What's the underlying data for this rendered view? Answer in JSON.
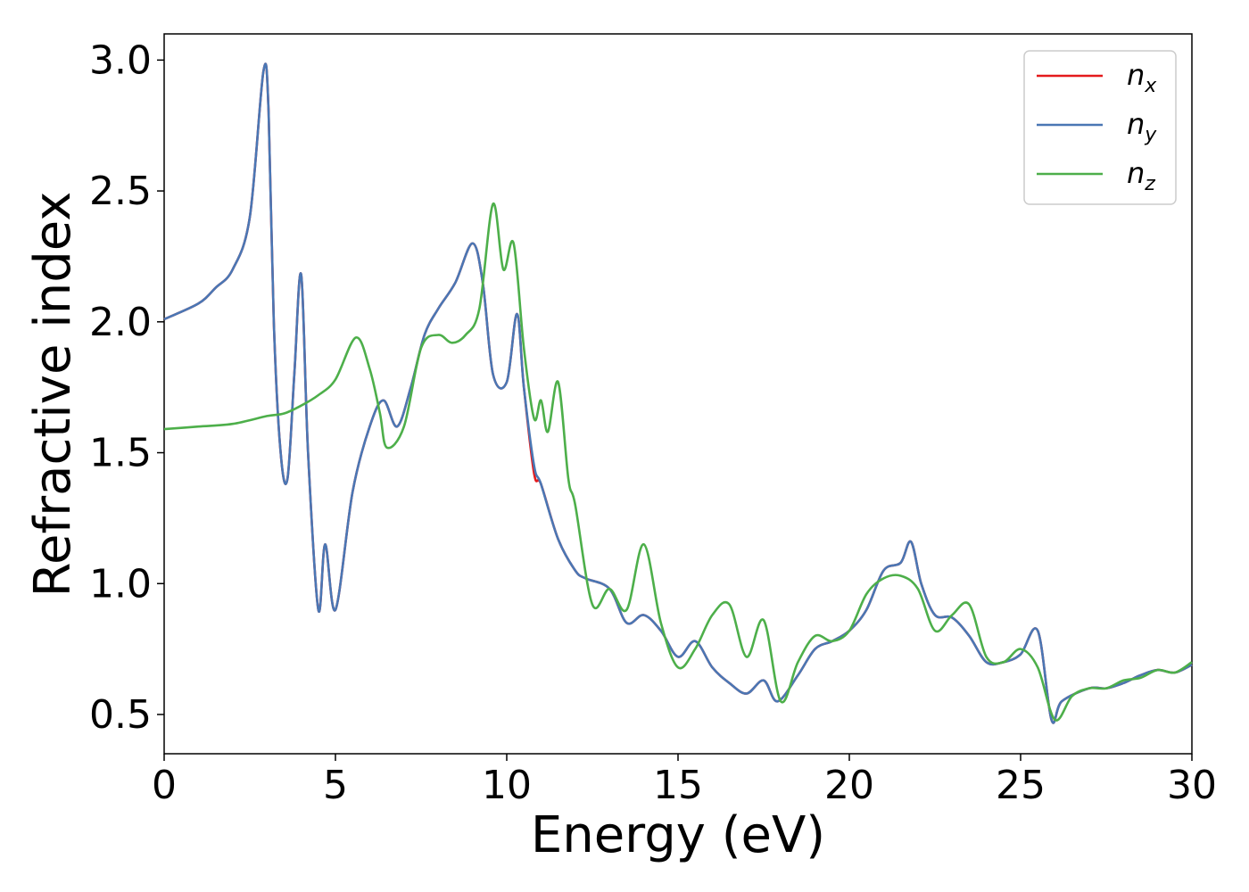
{
  "chart_data": {
    "type": "line",
    "xlabel": "Energy (eV)",
    "ylabel": "Refractive index",
    "xlim": [
      0,
      30
    ],
    "ylim": [
      0.35,
      3.1
    ],
    "xticks": [
      "0",
      "5",
      "10",
      "15",
      "20",
      "25",
      "30"
    ],
    "yticks": [
      "0.5",
      "1.0",
      "1.5",
      "2.0",
      "2.5",
      "3.0"
    ],
    "grid": false,
    "legend_position": "top-right",
    "series": [
      {
        "name": "n_x",
        "legend_base": "n",
        "legend_sub": "x",
        "color": "#e41a1c",
        "x": [
          0,
          1,
          1.5,
          2,
          2.5,
          2.9,
          3.05,
          3.2,
          3.4,
          3.6,
          3.8,
          4.0,
          4.2,
          4.5,
          4.7,
          5.0,
          5.5,
          6.0,
          6.4,
          6.8,
          7.2,
          7.6,
          8.0,
          8.5,
          9.0,
          9.3,
          9.6,
          10.0,
          10.3,
          10.5,
          10.8,
          11.0,
          11.5,
          12.0,
          12.3,
          13.0,
          13.5,
          14.0,
          14.5,
          15.0,
          15.5,
          16.0,
          16.5,
          17.0,
          17.5,
          17.9,
          18.5,
          19.0,
          19.5,
          20.0,
          20.5,
          21.0,
          21.5,
          21.8,
          22.1,
          22.5,
          23.0,
          23.5,
          24.0,
          24.5,
          25.0,
          25.5,
          25.9,
          26.2,
          27.0,
          27.5,
          28.0,
          28.5,
          29.0,
          29.5,
          30.0
        ],
        "y": [
          2.01,
          2.07,
          2.13,
          2.2,
          2.4,
          2.96,
          2.8,
          2.0,
          1.5,
          1.4,
          1.8,
          2.18,
          1.5,
          0.9,
          1.15,
          0.9,
          1.35,
          1.6,
          1.7,
          1.6,
          1.75,
          1.95,
          2.05,
          2.15,
          2.3,
          2.15,
          1.8,
          1.77,
          2.03,
          1.75,
          1.42,
          1.38,
          1.17,
          1.05,
          1.02,
          0.98,
          0.85,
          0.88,
          0.82,
          0.72,
          0.78,
          0.68,
          0.62,
          0.58,
          0.63,
          0.55,
          0.65,
          0.75,
          0.78,
          0.82,
          0.9,
          1.05,
          1.08,
          1.16,
          1.0,
          0.88,
          0.87,
          0.8,
          0.7,
          0.7,
          0.73,
          0.82,
          0.48,
          0.55,
          0.6,
          0.6,
          0.62,
          0.65,
          0.67,
          0.66,
          0.69
        ]
      },
      {
        "name": "n_y",
        "legend_base": "n",
        "legend_sub": "y",
        "color": "#4a77b4",
        "x": [
          0,
          1,
          1.5,
          2,
          2.5,
          2.9,
          3.05,
          3.2,
          3.4,
          3.6,
          3.8,
          4.0,
          4.2,
          4.5,
          4.7,
          5.0,
          5.5,
          6.0,
          6.4,
          6.8,
          7.2,
          7.6,
          8.0,
          8.5,
          9.0,
          9.3,
          9.6,
          10.0,
          10.3,
          10.5,
          10.8,
          11.0,
          11.5,
          12.0,
          12.3,
          13.0,
          13.5,
          14.0,
          14.5,
          15.0,
          15.5,
          16.0,
          16.5,
          17.0,
          17.5,
          17.9,
          18.5,
          19.0,
          19.5,
          20.0,
          20.5,
          21.0,
          21.5,
          21.8,
          22.1,
          22.5,
          23.0,
          23.5,
          24.0,
          24.5,
          25.0,
          25.5,
          25.9,
          26.2,
          27.0,
          27.5,
          28.0,
          28.5,
          29.0,
          29.5,
          30.0
        ],
        "y": [
          2.01,
          2.07,
          2.13,
          2.2,
          2.4,
          2.96,
          2.8,
          2.0,
          1.5,
          1.4,
          1.8,
          2.18,
          1.5,
          0.9,
          1.15,
          0.9,
          1.35,
          1.6,
          1.7,
          1.6,
          1.75,
          1.95,
          2.05,
          2.15,
          2.3,
          2.15,
          1.8,
          1.77,
          2.03,
          1.75,
          1.45,
          1.38,
          1.17,
          1.05,
          1.02,
          0.98,
          0.85,
          0.88,
          0.82,
          0.72,
          0.78,
          0.68,
          0.62,
          0.58,
          0.63,
          0.55,
          0.65,
          0.75,
          0.78,
          0.82,
          0.9,
          1.05,
          1.08,
          1.16,
          1.0,
          0.88,
          0.87,
          0.8,
          0.7,
          0.7,
          0.73,
          0.82,
          0.48,
          0.55,
          0.6,
          0.6,
          0.62,
          0.65,
          0.67,
          0.66,
          0.69
        ]
      },
      {
        "name": "n_z",
        "legend_base": "n",
        "legend_sub": "z",
        "color": "#4daf4a",
        "x": [
          0,
          1,
          2,
          3,
          3.5,
          4.0,
          4.5,
          5.0,
          5.6,
          6.0,
          6.3,
          6.5,
          7.0,
          7.5,
          8.0,
          8.4,
          8.8,
          9.2,
          9.6,
          9.9,
          10.2,
          10.5,
          10.8,
          11.0,
          11.2,
          11.5,
          11.8,
          12.0,
          12.5,
          13.0,
          13.5,
          14.0,
          14.5,
          15.0,
          15.5,
          16.0,
          16.5,
          17.0,
          17.5,
          18.0,
          18.5,
          19.0,
          19.5,
          20.0,
          20.5,
          21.0,
          21.5,
          22.0,
          22.5,
          23.0,
          23.5,
          24.0,
          24.5,
          25.0,
          25.5,
          26.0,
          26.5,
          27.0,
          27.5,
          28.0,
          28.5,
          29.0,
          29.5,
          30.0
        ],
        "y": [
          1.59,
          1.6,
          1.61,
          1.64,
          1.65,
          1.68,
          1.72,
          1.78,
          1.94,
          1.82,
          1.65,
          1.52,
          1.6,
          1.9,
          1.95,
          1.92,
          1.95,
          2.05,
          2.45,
          2.2,
          2.3,
          1.9,
          1.63,
          1.7,
          1.58,
          1.77,
          1.4,
          1.3,
          0.92,
          0.98,
          0.9,
          1.15,
          0.85,
          0.68,
          0.75,
          0.88,
          0.92,
          0.72,
          0.86,
          0.55,
          0.7,
          0.8,
          0.78,
          0.82,
          0.96,
          1.02,
          1.03,
          0.98,
          0.82,
          0.88,
          0.92,
          0.72,
          0.7,
          0.75,
          0.68,
          0.48,
          0.57,
          0.6,
          0.6,
          0.63,
          0.64,
          0.67,
          0.66,
          0.7
        ]
      }
    ]
  }
}
